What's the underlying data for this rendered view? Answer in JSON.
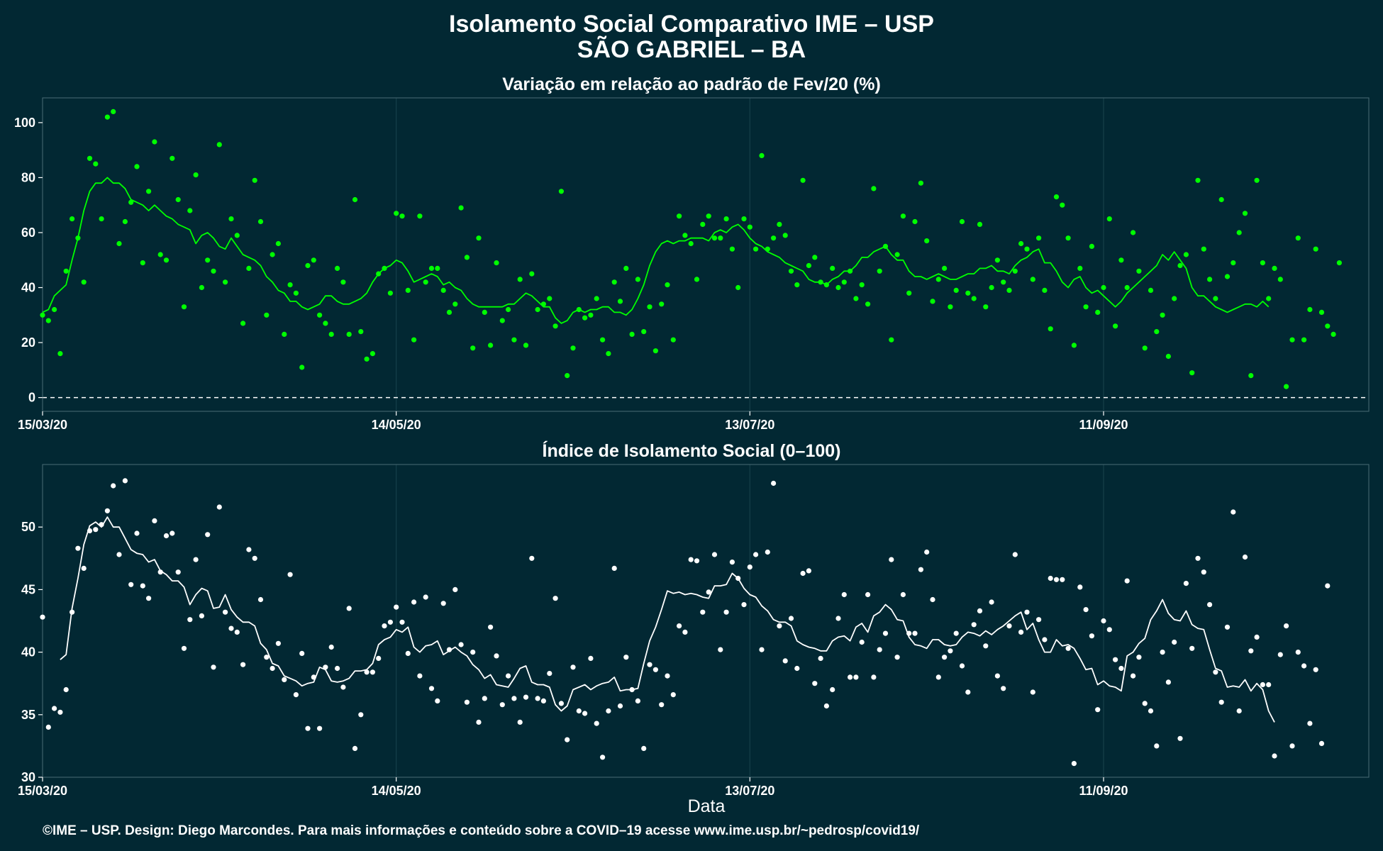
{
  "title_line1": "Isolamento Social Comparativo IME – USP",
  "title_line2": "SÃO GABRIEL – BA",
  "credit": "©IME – USP. Design: Diego Marcondes. Para mais informações e conteúdo sobre a COVID–19 acesse www.ime.usp.br/~pedrosp/covid19/",
  "colors": {
    "background": "#022833",
    "variation": "#00ff00",
    "index": "#ffffff",
    "grid": "#163f4a"
  },
  "chart_data": [
    {
      "type": "scatter",
      "title": "Variação em relação ao padrão de Fev/20 (%)",
      "xlabel": "",
      "ylabel": "",
      "x_start": "15/03/20",
      "x_ticks": [
        {
          "label": "15/03/20",
          "day": 0
        },
        {
          "label": "14/05/20",
          "day": 60
        },
        {
          "label": "13/07/20",
          "day": 120
        },
        {
          "label": "11/09/20",
          "day": 180
        }
      ],
      "y_ticks": [
        0,
        20,
        40,
        60,
        80,
        100
      ],
      "ylim": [
        -5,
        109
      ],
      "xlim": [
        0,
        225
      ],
      "reference_line": 0,
      "grid": "vertical",
      "series": [
        {
          "kind": "points",
          "y": [
            30,
            28,
            32,
            16,
            46,
            65,
            58,
            42,
            87,
            85,
            65,
            102,
            104,
            56,
            64,
            71,
            84,
            49,
            75,
            93,
            52,
            50,
            87,
            72,
            33,
            68,
            81,
            40,
            50,
            46,
            92,
            42,
            65,
            59,
            27,
            47,
            79,
            64,
            30,
            52,
            56,
            23,
            41,
            38,
            11,
            48,
            50,
            30,
            27,
            23,
            47,
            42,
            23,
            72,
            24,
            14,
            16,
            45,
            47,
            38,
            67,
            66,
            39,
            21,
            66,
            42,
            47,
            47,
            39,
            31,
            34,
            69,
            51,
            18,
            58,
            31,
            19,
            49,
            28,
            32,
            21,
            43,
            19,
            45,
            32,
            34,
            36,
            26,
            75,
            8,
            18,
            32,
            29,
            30,
            36,
            21,
            16,
            42,
            35,
            47,
            23,
            43,
            24,
            33,
            17,
            34,
            41,
            21,
            66,
            59,
            56,
            43,
            63,
            66,
            58,
            58,
            65,
            54,
            40,
            65,
            62,
            54,
            88,
            54,
            58,
            63,
            59,
            46,
            41,
            79,
            48,
            51,
            42,
            41,
            47,
            40,
            42,
            46,
            36,
            41,
            34,
            76,
            46,
            55,
            21,
            52,
            66,
            38,
            64,
            78,
            57,
            35,
            43,
            47,
            33,
            39,
            64,
            38,
            36,
            63,
            33,
            40,
            50,
            42,
            39,
            46,
            56,
            54,
            43,
            58,
            39,
            25,
            73,
            70,
            58,
            19,
            47,
            33,
            55,
            31,
            40,
            65,
            26,
            50,
            40,
            60,
            46,
            18,
            39,
            24,
            30,
            15,
            36,
            48,
            52,
            9,
            79,
            54,
            43,
            36,
            72,
            44,
            49,
            60,
            67,
            8,
            79,
            49,
            36,
            47,
            43,
            4,
            21,
            58,
            21,
            32,
            54,
            31,
            26,
            23,
            49
          ]
        },
        {
          "kind": "moving_average",
          "start_day": 0,
          "y": [
            31,
            32,
            37,
            39,
            41,
            50,
            58,
            68,
            75,
            78,
            78,
            80,
            78,
            78,
            76,
            72,
            71,
            70,
            68,
            70,
            68,
            66,
            65,
            63,
            62,
            61,
            56,
            59,
            60,
            58,
            55,
            54,
            58,
            55,
            52,
            51,
            50,
            48,
            44,
            42,
            39,
            38,
            35,
            35,
            33,
            32,
            33,
            34,
            37,
            37,
            35,
            34,
            34,
            35,
            36,
            38,
            42,
            45,
            47,
            48,
            50,
            49,
            46,
            42,
            43,
            44,
            45,
            44,
            41,
            42,
            40,
            39,
            36,
            34,
            33,
            33,
            33,
            33,
            33,
            34,
            34,
            36,
            38,
            37,
            35,
            33,
            33,
            29,
            27,
            28,
            31,
            32,
            31,
            32,
            32,
            33,
            33,
            31,
            31,
            30,
            32,
            36,
            41,
            48,
            53,
            56,
            57,
            56,
            57,
            57,
            58,
            58,
            58,
            57,
            60,
            61,
            60,
            62,
            63,
            61,
            58,
            56,
            55,
            53,
            52,
            51,
            49,
            48,
            47,
            46,
            43,
            42,
            42,
            41,
            43,
            44,
            46,
            46,
            48,
            51,
            51,
            53,
            54,
            55,
            52,
            50,
            50,
            46,
            44,
            44,
            43,
            44,
            45,
            44,
            43,
            43,
            44,
            45,
            45,
            47,
            47,
            48,
            46,
            46,
            45,
            48,
            50,
            51,
            53,
            54,
            49,
            49,
            46,
            42,
            40,
            43,
            44,
            40,
            38,
            39,
            37,
            35,
            33,
            35,
            38,
            40,
            42,
            44,
            46,
            48,
            52,
            50,
            53,
            50,
            47,
            40,
            37,
            37,
            35,
            33,
            32,
            31,
            32,
            33,
            34,
            34,
            33,
            35,
            33
          ]
        }
      ]
    },
    {
      "type": "scatter",
      "title": "Índice de Isolamento Social (0–100)",
      "xlabel": "Data",
      "ylabel": "",
      "x_start": "15/03/20",
      "x_ticks": [
        {
          "label": "15/03/20",
          "day": 0
        },
        {
          "label": "14/05/20",
          "day": 60
        },
        {
          "label": "13/07/20",
          "day": 120
        },
        {
          "label": "11/09/20",
          "day": 180
        }
      ],
      "y_ticks": [
        30,
        35,
        40,
        45,
        50
      ],
      "ylim": [
        30,
        55
      ],
      "xlim": [
        0,
        225
      ],
      "grid": "vertical",
      "series": [
        {
          "kind": "points",
          "y": [
            42.8,
            34.0,
            35.5,
            35.2,
            37.0,
            43.2,
            48.3,
            46.7,
            49.7,
            49.8,
            50.2,
            51.3,
            53.3,
            47.8,
            53.7,
            45.4,
            49.5,
            45.3,
            44.3,
            50.5,
            46.4,
            49.3,
            49.5,
            46.4,
            40.3,
            42.6,
            47.4,
            42.9,
            49.4,
            38.8,
            51.6,
            43.2,
            41.9,
            41.6,
            39.0,
            48.2,
            47.5,
            44.2,
            39.6,
            38.7,
            40.7,
            37.8,
            46.2,
            36.6,
            39.9,
            33.9,
            38.0,
            33.9,
            38.8,
            40.4,
            38.7,
            37.2,
            43.5,
            32.3,
            35.0,
            38.4,
            38.4,
            39.5,
            42.1,
            42.4,
            43.6,
            42.4,
            39.9,
            44.0,
            38.1,
            44.4,
            37.1,
            36.1,
            43.9,
            40.2,
            45.0,
            40.6,
            36.0,
            40.0,
            34.4,
            36.3,
            42.0,
            39.7,
            35.8,
            38.1,
            36.3,
            34.4,
            36.4,
            47.5,
            36.3,
            36.1,
            38.3,
            44.3,
            35.9,
            33.0,
            38.8,
            35.3,
            35.1,
            39.5,
            34.3,
            31.6,
            35.3,
            46.7,
            35.7,
            39.6,
            37.0,
            36.1,
            32.3,
            39.0,
            38.6,
            35.8,
            38.1,
            36.6,
            42.1,
            41.6,
            47.4,
            47.3,
            43.2,
            44.8,
            47.8,
            40.2,
            43.2,
            47.2,
            45.9,
            43.8,
            46.8,
            47.8,
            40.2,
            48.0,
            53.5,
            42.1,
            39.3,
            42.7,
            38.7,
            46.3,
            46.5,
            37.5,
            39.5,
            35.7,
            37.0,
            42.7,
            44.6,
            38.0,
            38.0,
            40.8,
            44.6,
            38.0,
            40.2,
            41.5,
            47.4,
            39.6,
            44.6,
            41.5,
            41.5,
            46.6,
            48.0,
            44.2,
            38.0,
            39.6,
            40.1,
            41.5,
            38.9,
            36.8,
            42.2,
            43.3,
            40.5,
            44.0,
            38.1,
            37.1,
            42.1,
            47.8,
            41.6,
            43.2,
            36.8,
            42.6,
            41.0,
            45.9,
            45.8,
            45.8,
            40.3,
            31.1,
            45.2,
            43.4,
            41.3,
            35.4,
            42.5,
            41.8,
            39.4,
            38.7,
            45.7,
            38.1,
            39.6,
            35.9,
            35.3,
            32.5,
            40.0,
            37.6,
            40.8,
            33.1,
            45.5,
            40.3,
            47.5,
            46.4,
            43.8,
            38.4,
            36.0,
            42.0,
            51.2,
            35.3,
            47.6,
            40.1,
            41.2,
            37.4,
            37.4,
            31.7,
            39.8,
            42.1,
            32.5,
            40.0,
            38.9,
            34.3,
            38.6,
            32.7,
            45.3
          ]
        },
        {
          "kind": "moving_average",
          "start_day": 3,
          "y": [
            39.4,
            39.8,
            43.5,
            45.9,
            48.6,
            50.1,
            50.4,
            50.0,
            50.8,
            50.0,
            50.0,
            49.1,
            48.2,
            47.9,
            47.8,
            47.2,
            47.4,
            46.5,
            46.2,
            45.7,
            45.7,
            45.2,
            43.8,
            44.6,
            45.1,
            44.9,
            43.5,
            43.6,
            44.6,
            43.4,
            42.8,
            42.4,
            42.4,
            42.1,
            40.7,
            40.2,
            39.1,
            38.9,
            38.1,
            37.9,
            37.7,
            37.3,
            37.5,
            37.6,
            38.8,
            38.6,
            37.7,
            37.6,
            37.7,
            37.9,
            38.5,
            38.5,
            38.6,
            39.1,
            40.6,
            41.0,
            41.2,
            41.8,
            41.6,
            42.0,
            40.4,
            40.0,
            40.5,
            40.6,
            40.9,
            39.8,
            40.1,
            40.4,
            40.0,
            39.7,
            39.0,
            38.6,
            37.9,
            38.2,
            37.4,
            37.3,
            37.2,
            37.9,
            38.7,
            38.9,
            37.6,
            37.4,
            37.4,
            37.2,
            35.8,
            35.3,
            35.7,
            37.0,
            37.2,
            37.4,
            37.0,
            37.3,
            37.5,
            37.6,
            38.0,
            36.9,
            37.0,
            37.0,
            37.1,
            39.1,
            40.9,
            42.0,
            43.4,
            44.9,
            44.7,
            44.8,
            44.6,
            44.7,
            44.6,
            44.4,
            44.3,
            45.3,
            45.3,
            45.4,
            46.3,
            45.9,
            45.1,
            44.6,
            44.4,
            43.7,
            43.3,
            42.6,
            42.4,
            42.4,
            42.1,
            40.9,
            40.6,
            40.4,
            40.3,
            40.1,
            40.1,
            40.9,
            41.2,
            41.3,
            40.9,
            42.0,
            42.3,
            41.6,
            42.9,
            43.2,
            43.8,
            43.4,
            42.6,
            42.5,
            41.2,
            40.6,
            40.5,
            40.3,
            41.0,
            41.0,
            40.6,
            40.5,
            40.6,
            41.2,
            41.6,
            41.5,
            41.3,
            41.7,
            41.4,
            41.8,
            42.1,
            42.5,
            42.9,
            43.2,
            41.8,
            42.3,
            41.0,
            40.0,
            40.0,
            41.0,
            40.5,
            40.6,
            40.3,
            39.5,
            38.6,
            38.7,
            37.4,
            37.7,
            37.3,
            37.2,
            36.9,
            39.7,
            40.0,
            40.7,
            41.1,
            42.6,
            43.3,
            44.2,
            43.1,
            42.6,
            42.5,
            43.3,
            42.2,
            41.9,
            41.8,
            40.2,
            38.7,
            38.5,
            37.2,
            37.3,
            37.2,
            37.8,
            36.9,
            37.5,
            37.0,
            35.3,
            34.4
          ]
        }
      ]
    }
  ]
}
